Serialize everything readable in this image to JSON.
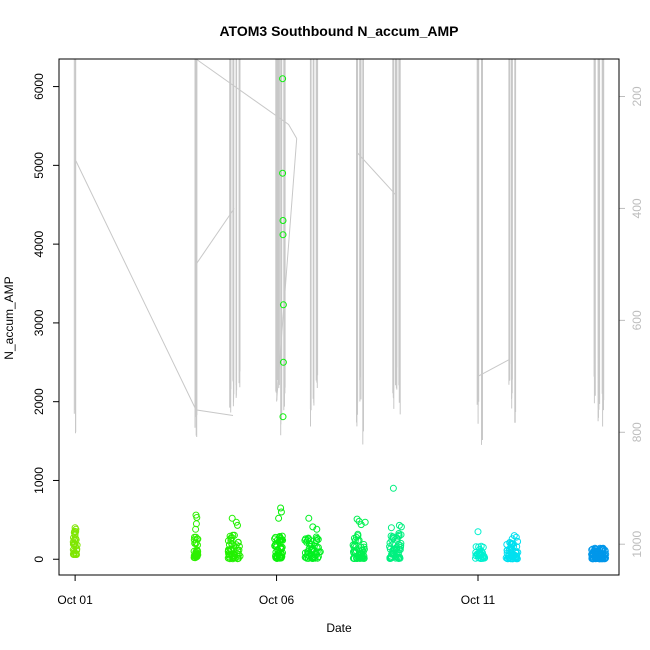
{
  "chart_data": {
    "type": "scatter",
    "title": "ATOM3 Southbound N_accum_AMP",
    "xlabel": "Date",
    "ylabel": "N_accum_AMP",
    "x_ticks": [
      "Oct 01",
      "Oct 06",
      "Oct 11"
    ],
    "x_domain_days": [
      0.6,
      14.5
    ],
    "y_ticks": [
      0,
      1000,
      2000,
      3000,
      4000,
      5000,
      6000
    ],
    "y_range": [
      -200,
      6350
    ],
    "y2_ticks": [
      200,
      400,
      600,
      800,
      1000
    ],
    "y2_range": [
      1055,
      133
    ],
    "y2_color": "#bdbdbd",
    "gray_line_color": "#c8c8c8",
    "grid": false,
    "scatter_groups": [
      {
        "day": 1.0,
        "count": 30,
        "spread": 0.05,
        "ymin": 60,
        "ymax": 360,
        "color": "#7fe600",
        "extra": [
          [
            1.0,
            400
          ],
          [
            1.02,
            380
          ],
          [
            0.98,
            340
          ]
        ]
      },
      {
        "day": 4.0,
        "count": 30,
        "spread": 0.05,
        "ymin": 20,
        "ymax": 300,
        "color": "#2ef000",
        "extra": [
          [
            4.0,
            560
          ],
          [
            4.02,
            530
          ],
          [
            3.99,
            380
          ],
          [
            4.01,
            450
          ]
        ]
      },
      {
        "day": 4.95,
        "count": 45,
        "spread": 0.15,
        "ymin": 5,
        "ymax": 330,
        "color": "#22f000",
        "extra": [
          [
            4.9,
            520
          ],
          [
            5.0,
            470
          ],
          [
            5.03,
            430
          ]
        ]
      },
      {
        "day": 6.05,
        "count": 50,
        "spread": 0.1,
        "ymin": 10,
        "ymax": 300,
        "color": "#0af00a",
        "extra": [
          [
            6.1,
            650
          ],
          [
            6.12,
            600
          ],
          [
            6.05,
            520
          ],
          [
            6.15,
            6100
          ],
          [
            6.15,
            4900
          ],
          [
            6.16,
            4300
          ],
          [
            6.16,
            4120
          ],
          [
            6.17,
            3230
          ],
          [
            6.17,
            2500
          ],
          [
            6.16,
            1810
          ]
        ]
      },
      {
        "day": 6.9,
        "count": 50,
        "spread": 0.2,
        "ymin": 10,
        "ymax": 300,
        "color": "#00f020",
        "extra": [
          [
            6.8,
            520
          ],
          [
            6.9,
            410
          ],
          [
            7.0,
            380
          ]
        ]
      },
      {
        "day": 8.05,
        "count": 50,
        "spread": 0.15,
        "ymin": 10,
        "ymax": 330,
        "color": "#00f050",
        "extra": [
          [
            8.0,
            510
          ],
          [
            8.05,
            480
          ],
          [
            8.2,
            470
          ],
          [
            8.1,
            440
          ]
        ]
      },
      {
        "day": 8.95,
        "count": 50,
        "spread": 0.15,
        "ymin": 10,
        "ymax": 330,
        "color": "#00f080",
        "extra": [
          [
            8.9,
            900
          ],
          [
            9.05,
            430
          ],
          [
            9.1,
            410
          ],
          [
            8.85,
            400
          ]
        ]
      },
      {
        "day": 11.05,
        "count": 35,
        "spread": 0.12,
        "ymin": 10,
        "ymax": 180,
        "color": "#00f0d0",
        "extra": [
          [
            11.0,
            350
          ]
        ]
      },
      {
        "day": 11.85,
        "count": 50,
        "spread": 0.15,
        "ymin": 5,
        "ymax": 240,
        "color": "#00e0f0",
        "extra": [
          [
            11.9,
            300
          ],
          [
            11.95,
            280
          ],
          [
            11.85,
            260
          ]
        ]
      },
      {
        "day": 14.0,
        "count": 70,
        "spread": 0.18,
        "ymin": 5,
        "ymax": 150,
        "color": "#0097ea",
        "extra": []
      }
    ]
  }
}
